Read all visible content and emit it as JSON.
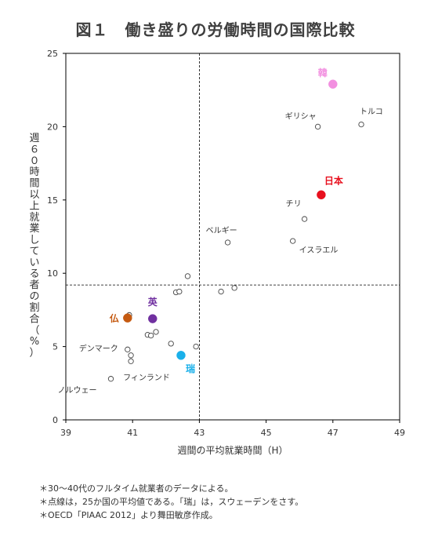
{
  "title": "図１　働き盛りの労働時間の国際比較",
  "chart_data": {
    "type": "scatter",
    "xlabel": "週間の平均就業時間（H）",
    "ylabel": "週６０時間以上就業している者の割合（%）",
    "xlim": [
      39,
      49
    ],
    "ylim": [
      0,
      25
    ],
    "xticks": [
      39,
      41,
      43,
      45,
      47,
      49
    ],
    "yticks": [
      0,
      5,
      10,
      15,
      20,
      25
    ],
    "grid": false,
    "reference_lines": {
      "x": 43.0,
      "y": 9.2
    },
    "highlighted": [
      {
        "label": "韓",
        "x": 47.0,
        "y": 22.9,
        "color": "#f28fe0"
      },
      {
        "label": "日本",
        "x": 46.65,
        "y": 15.35,
        "color": "#e8101e"
      },
      {
        "label": "英",
        "x": 41.6,
        "y": 6.9,
        "color": "#7030a0"
      },
      {
        "label": "仏",
        "x": 40.85,
        "y": 6.95,
        "color": "#c55a11"
      },
      {
        "label": "瑞",
        "x": 42.45,
        "y": 4.4,
        "color": "#1ab0ea"
      }
    ],
    "labeled_points": [
      {
        "label": "ギリシャ",
        "x": 46.55,
        "y": 20.0
      },
      {
        "label": "トルコ",
        "x": 47.85,
        "y": 20.15
      },
      {
        "label": "チリ",
        "x": 46.15,
        "y": 13.7
      },
      {
        "label": "ベルギー",
        "x": 43.85,
        "y": 12.1
      },
      {
        "label": "イスラエル",
        "x": 45.8,
        "y": 12.2
      },
      {
        "label": "デンマーク",
        "x": 40.85,
        "y": 4.8
      },
      {
        "label": "フィンランド",
        "x": 40.95,
        "y": 4.0
      },
      {
        "label": "ノルウェー",
        "x": 40.35,
        "y": 2.8
      }
    ],
    "other_points": [
      {
        "x": 40.9,
        "y": 7.15
      },
      {
        "x": 41.45,
        "y": 5.8
      },
      {
        "x": 41.55,
        "y": 5.75
      },
      {
        "x": 41.7,
        "y": 6.0
      },
      {
        "x": 42.15,
        "y": 5.2
      },
      {
        "x": 42.3,
        "y": 8.7
      },
      {
        "x": 42.4,
        "y": 8.75
      },
      {
        "x": 42.65,
        "y": 9.8
      },
      {
        "x": 42.9,
        "y": 5.0
      },
      {
        "x": 43.65,
        "y": 8.75
      },
      {
        "x": 44.05,
        "y": 9.0
      },
      {
        "x": 40.95,
        "y": 4.4
      }
    ]
  },
  "notes": [
    "＊30～40代のフルタイム就業者のデータによる。",
    "＊点線は，25か国の平均値である。「瑞」は，スウェーデンをさす。",
    "＊OECD「PIAAC 2012」より舞田敏彦作成。"
  ]
}
